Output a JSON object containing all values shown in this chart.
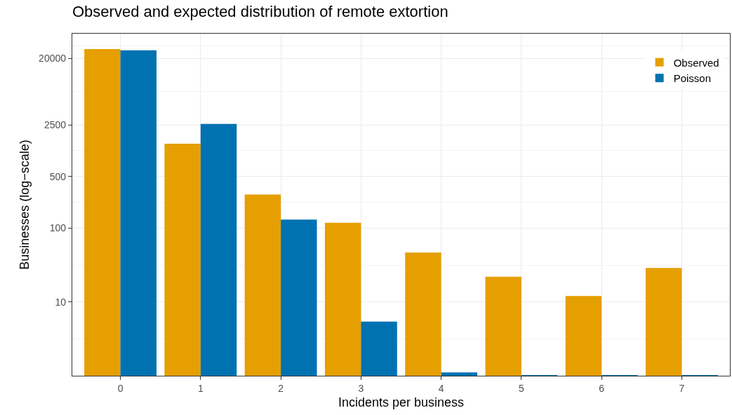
{
  "chart_data": {
    "type": "bar",
    "title": "Observed and expected distribution of remote extortion",
    "xlabel": "Incidents per business",
    "ylabel": "Businesses (log−scale)",
    "categories": [
      "0",
      "1",
      "2",
      "3",
      "4",
      "5",
      "6",
      "7"
    ],
    "series": [
      {
        "name": "Observed",
        "color": "#e69f00",
        "values": [
          26600,
          1390,
          285,
          118,
          46.6,
          21.9,
          12,
          28.8
        ]
      },
      {
        "name": "Poisson",
        "color": "#0072b2",
        "values": [
          25600,
          2580,
          130,
          5.4,
          1.11,
          1.02,
          1.02,
          1.02
        ]
      }
    ],
    "log": true,
    "ylim": [
      1,
      43000
    ],
    "yticks": [
      10,
      100,
      500,
      2500,
      20000
    ],
    "grid": true,
    "legend": "top right"
  }
}
